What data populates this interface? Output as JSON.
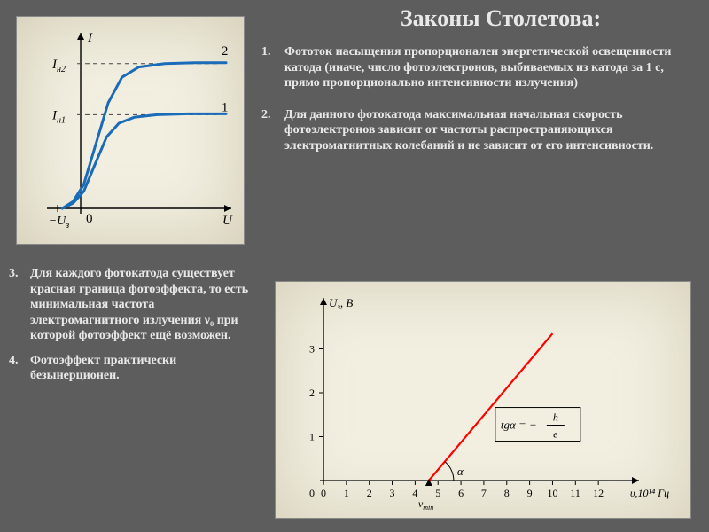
{
  "title": {
    "text": "Законы Столетова:",
    "fontsize": 26,
    "weight": "bold",
    "color": "#e8e8e8"
  },
  "laws": {
    "right": [
      {
        "num": "1.",
        "text": "Фототок насыщения пропорционален энергетической освещенности катода (иначе, число фотоэлектронов, выбиваемых из катода за 1 с, прямо пропорционально интенсивности излучения)"
      },
      {
        "num": "2.",
        "text": "Для данного фотокатода максимальная начальная скорость фотоэлектронов зависит от частоты распространяющихся электромагнитных колебаний и не зависит от его интенсивности."
      }
    ],
    "bottom": [
      {
        "num": "3.",
        "text": "Для каждого фотокатода существует красная граница фотоэффекта, то есть минимальная частота электромагнитного излучения ν₀ при которой фотоэффект ещё возможен."
      },
      {
        "num": "4.",
        "text": "Фотоэффект практически безынерционен."
      }
    ],
    "fontsize": 14,
    "weight": "bold",
    "color": "#e8e8e8"
  },
  "chart1": {
    "type": "line",
    "background_color": "#f2efe1",
    "axis_color": "#000000",
    "curve_color": "#1a6bb8",
    "curve_width": 3,
    "dash_color": "#444444",
    "label_color": "#000000",
    "label_fontsize": 15,
    "xlabel": "U",
    "ylabel": "I",
    "x_neg_label": "−Uз",
    "y_ticks": [
      {
        "label": "Iн1",
        "y": 0.55
      },
      {
        "label": "Iн2",
        "y": 0.85
      }
    ],
    "origin_label": "0",
    "curve_labels": [
      {
        "label": "1",
        "x": 0.92,
        "y": 0.57
      },
      {
        "label": "2",
        "x": 0.92,
        "y": 0.9
      }
    ],
    "curves": [
      [
        [
          -0.12,
          0
        ],
        [
          -0.05,
          0.03
        ],
        [
          0.02,
          0.1
        ],
        [
          0.09,
          0.25
        ],
        [
          0.17,
          0.42
        ],
        [
          0.25,
          0.5
        ],
        [
          0.35,
          0.535
        ],
        [
          0.5,
          0.55
        ],
        [
          0.7,
          0.555
        ],
        [
          0.95,
          0.555
        ]
      ],
      [
        [
          -0.12,
          0
        ],
        [
          -0.05,
          0.04
        ],
        [
          0.02,
          0.14
        ],
        [
          0.1,
          0.38
        ],
        [
          0.18,
          0.62
        ],
        [
          0.27,
          0.77
        ],
        [
          0.38,
          0.83
        ],
        [
          0.55,
          0.85
        ],
        [
          0.75,
          0.855
        ],
        [
          0.95,
          0.855
        ]
      ]
    ]
  },
  "chart2": {
    "type": "line",
    "background_color": "#f2efe1",
    "axis_color": "#000000",
    "line_color": "#ff0000",
    "line_width": 2.2,
    "label_color": "#000000",
    "label_fontsize": 13,
    "ylabel": "Uз, В",
    "xlabel": "υ,10¹⁴ Гц",
    "x_start_label": "νmin",
    "xlim": [
      0,
      13
    ],
    "ylim": [
      0,
      4
    ],
    "xticks": [
      0,
      1,
      2,
      3,
      4,
      5,
      6,
      7,
      8,
      9,
      10,
      11,
      12
    ],
    "yticks": [
      0,
      1,
      2,
      3
    ],
    "line_data": [
      [
        4.6,
        0
      ],
      [
        10.0,
        3.35
      ]
    ],
    "angle_label": "α",
    "angle_arc_radius": 28,
    "formula": "tg α = − h / e"
  }
}
